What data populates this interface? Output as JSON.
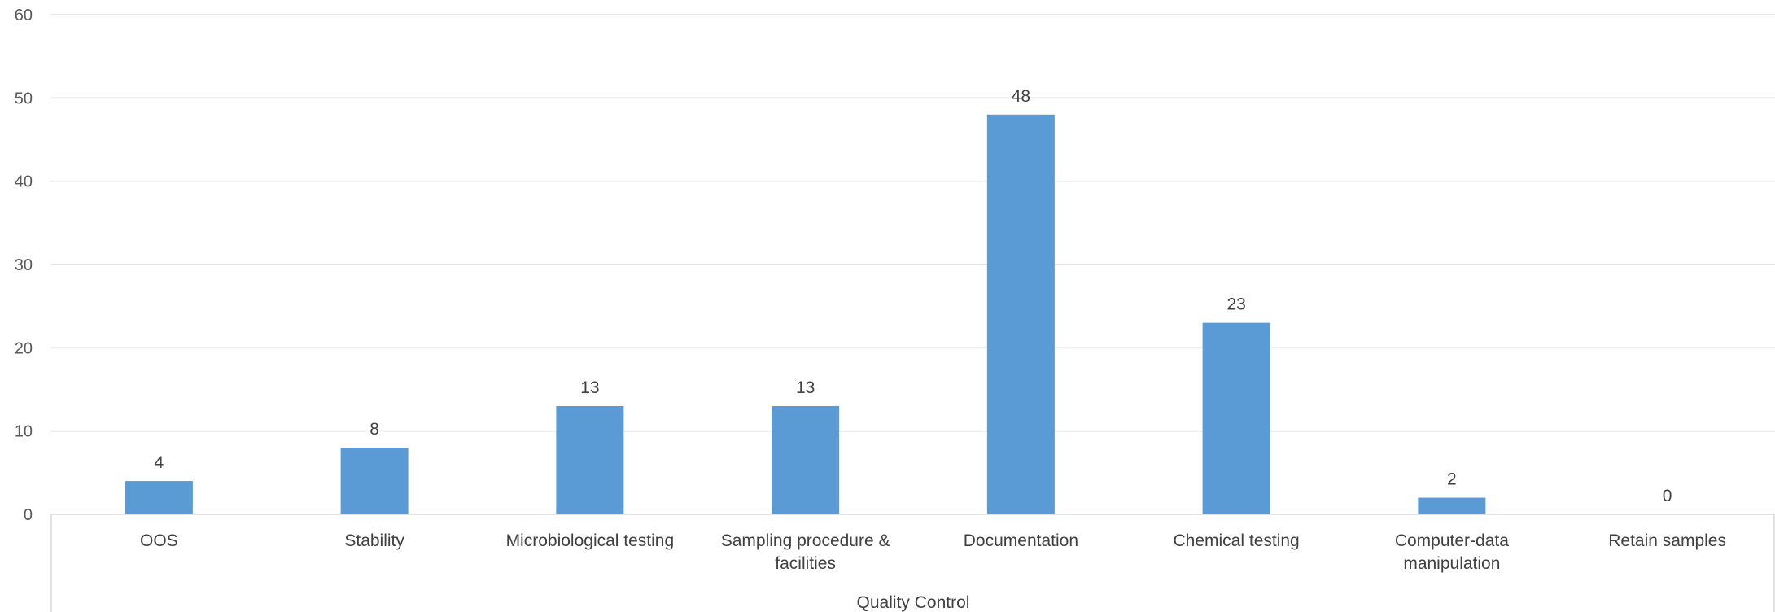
{
  "chart_data": {
    "type": "bar",
    "categories": [
      [
        "OOS"
      ],
      [
        "Stability"
      ],
      [
        "Microbiological testing"
      ],
      [
        "Sampling procedure &",
        "facilities"
      ],
      [
        "Documentation"
      ],
      [
        "Chemical testing"
      ],
      [
        "Computer-data",
        "manipulation"
      ],
      [
        "Retain samples"
      ]
    ],
    "values": [
      4,
      8,
      13,
      13,
      48,
      23,
      2,
      0
    ],
    "group_label": "Quality Control",
    "ylim": [
      0,
      60
    ],
    "yticks": [
      0,
      10,
      20,
      30,
      40,
      50,
      60
    ],
    "grid": true,
    "legend": "none",
    "bar_color": "#5b9bd5"
  }
}
